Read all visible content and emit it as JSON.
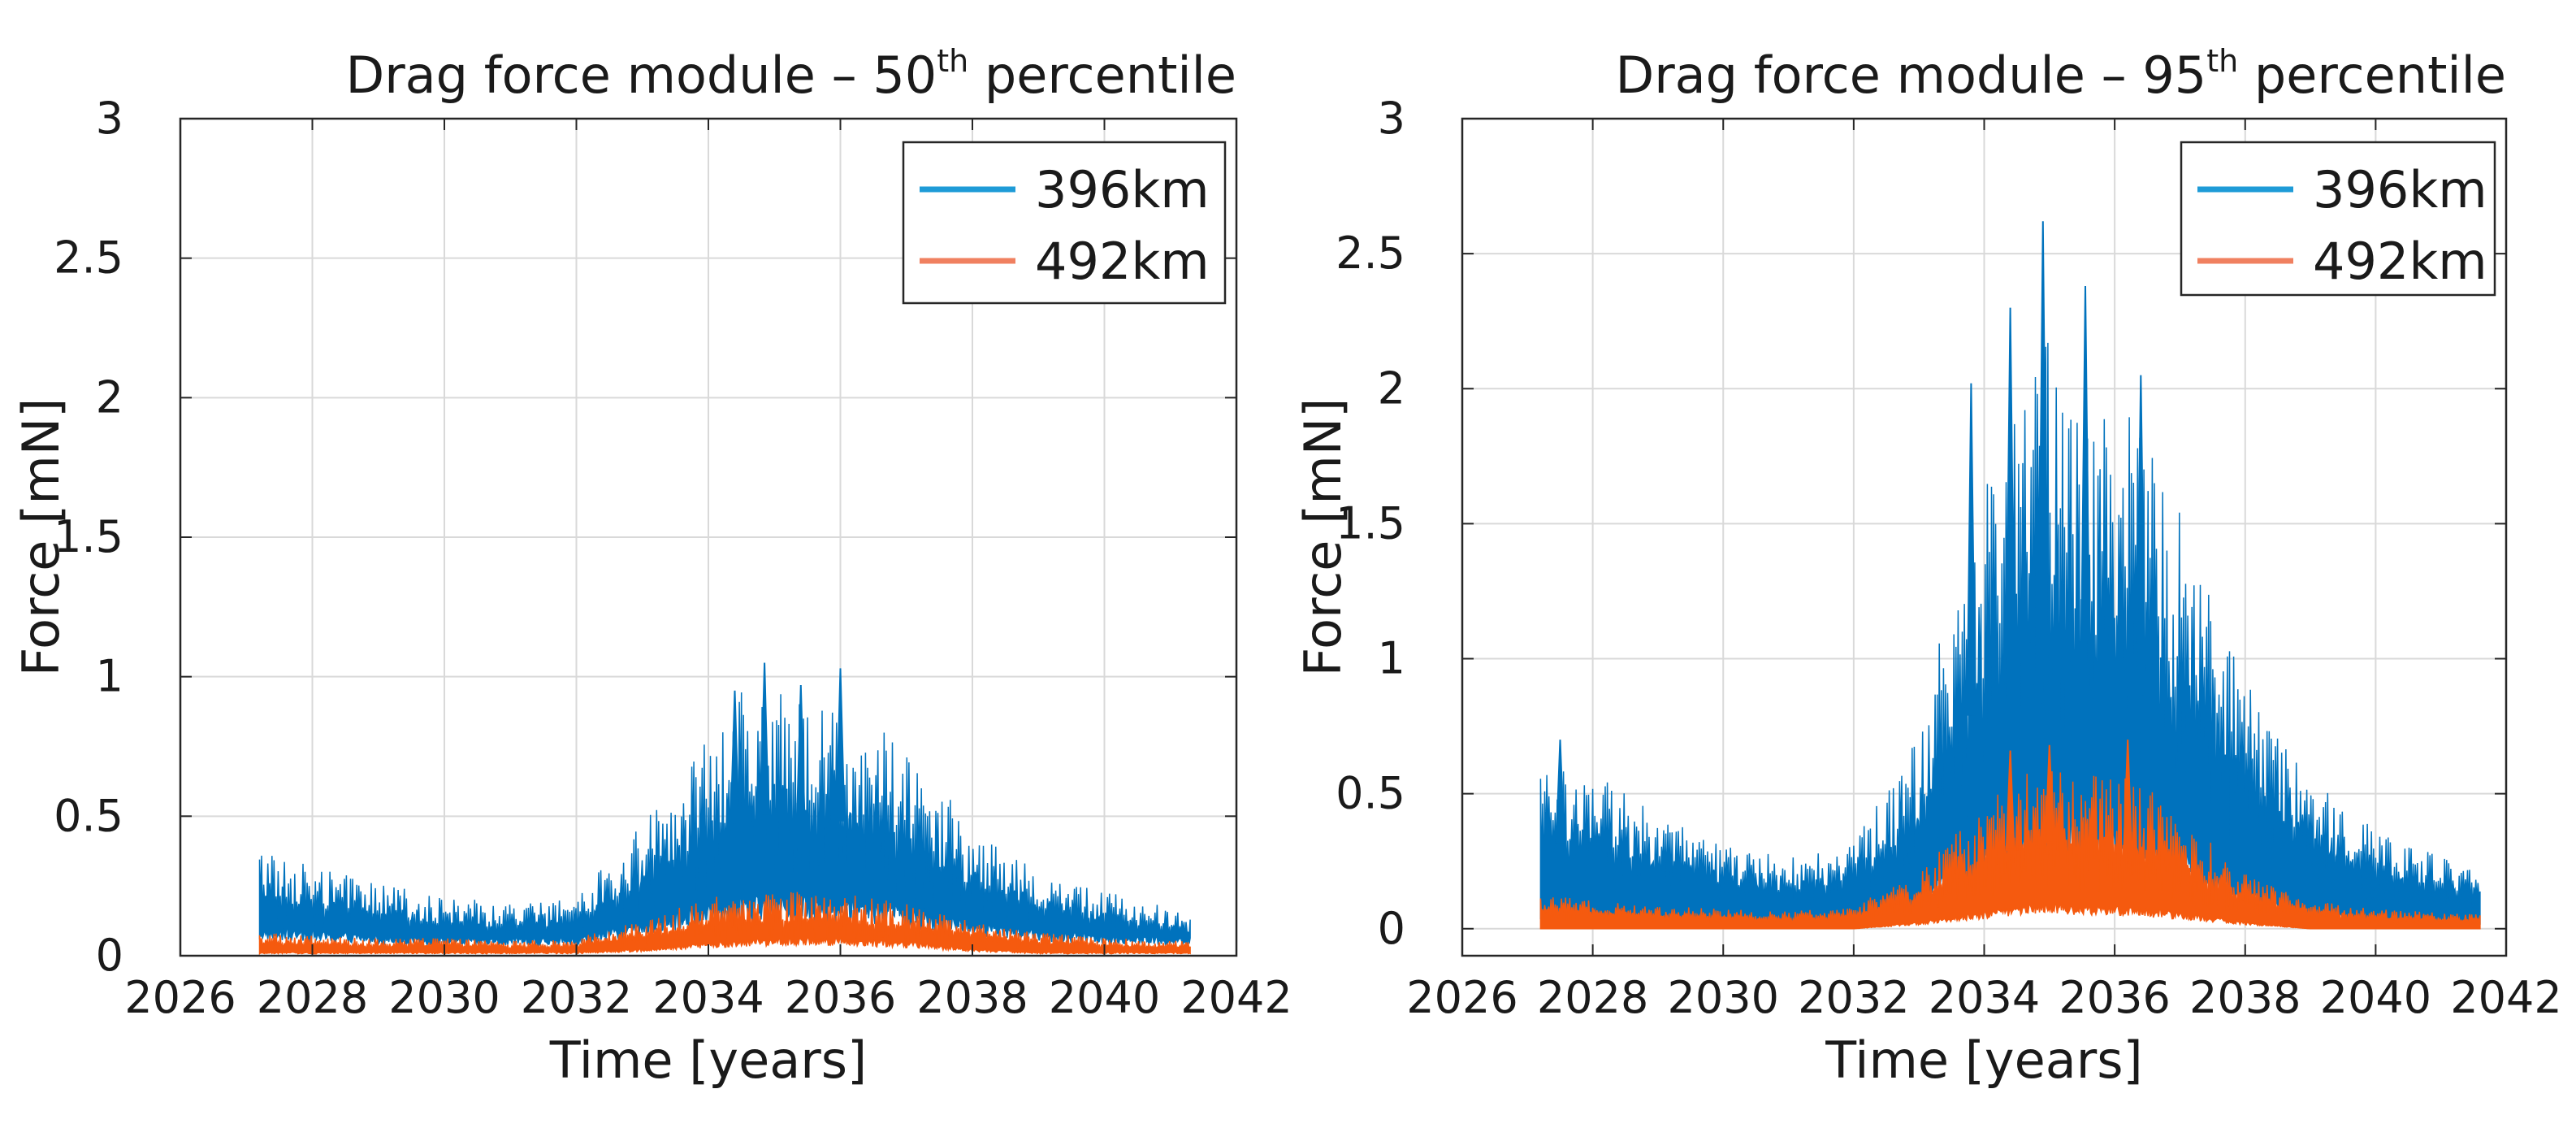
{
  "chart_data": [
    {
      "type": "area",
      "title": "Drag force module – 50",
      "title_sup": "th",
      "title_suffix": " percentile",
      "xlabel": "Time [years]",
      "ylabel": "Force [mN]",
      "xlim": [
        2026,
        2042
      ],
      "ylim": [
        0,
        3
      ],
      "xticks": [
        2026,
        2028,
        2030,
        2032,
        2034,
        2036,
        2038,
        2040,
        2042
      ],
      "yticks": [
        0,
        0.5,
        1,
        1.5,
        2,
        2.5,
        3
      ],
      "ytick_labels": [
        "0",
        "0.5",
        "1",
        "1.5",
        "2",
        "2.5",
        "3"
      ],
      "grid": true,
      "legend_position": "top-right",
      "series": [
        {
          "name": "396km",
          "color": "#0072BD",
          "legend_color": "#1E9BD7",
          "x": [
            2027.2,
            2028.0,
            2029.0,
            2030.0,
            2031.0,
            2032.0,
            2033.0,
            2034.0,
            2034.5,
            2035.0,
            2035.5,
            2036.0,
            2036.5,
            2037.0,
            2038.0,
            2039.0,
            2040.0,
            2041.3
          ],
          "upper": [
            0.38,
            0.3,
            0.25,
            0.2,
            0.18,
            0.2,
            0.45,
            0.75,
            0.9,
            0.92,
            0.85,
            0.88,
            0.8,
            0.7,
            0.45,
            0.3,
            0.22,
            0.15
          ],
          "lower": [
            0.08,
            0.07,
            0.06,
            0.05,
            0.05,
            0.05,
            0.1,
            0.15,
            0.18,
            0.18,
            0.17,
            0.17,
            0.16,
            0.14,
            0.1,
            0.07,
            0.06,
            0.05
          ],
          "peaks": [
            {
              "x": 2034.85,
              "y": 1.05
            },
            {
              "x": 2036.0,
              "y": 1.03
            },
            {
              "x": 2034.4,
              "y": 0.95
            },
            {
              "x": 2035.4,
              "y": 0.97
            }
          ]
        },
        {
          "name": "492km",
          "color": "#F55A0F",
          "legend_color": "#F08060",
          "x": [
            2027.2,
            2028.0,
            2029.0,
            2030.0,
            2031.0,
            2032.0,
            2033.0,
            2034.0,
            2035.0,
            2036.0,
            2037.0,
            2038.0,
            2039.0,
            2040.0,
            2041.3
          ],
          "upper": [
            0.08,
            0.07,
            0.06,
            0.06,
            0.05,
            0.06,
            0.12,
            0.2,
            0.22,
            0.22,
            0.18,
            0.12,
            0.08,
            0.06,
            0.05
          ],
          "lower": [
            0.01,
            0.01,
            0.01,
            0.01,
            0.01,
            0.01,
            0.02,
            0.04,
            0.05,
            0.05,
            0.04,
            0.02,
            0.01,
            0.01,
            0.01
          ],
          "peaks": []
        }
      ]
    },
    {
      "type": "area",
      "title": "Drag force module – 95",
      "title_sup": "th",
      "title_suffix": " percentile",
      "xlabel": "Time [years]",
      "ylabel": "Force [mN]",
      "xlim": [
        2026,
        2042
      ],
      "ylim": [
        -0.1,
        3
      ],
      "xticks": [
        2026,
        2028,
        2030,
        2032,
        2034,
        2036,
        2038,
        2040,
        2042
      ],
      "yticks": [
        0,
        0.5,
        1,
        1.5,
        2,
        2.5,
        3
      ],
      "ytick_labels": [
        "0",
        "0.5",
        "1",
        "1.5",
        "2",
        "2.5",
        "3"
      ],
      "grid": true,
      "legend_position": "top-right",
      "series": [
        {
          "name": "396km",
          "color": "#0072BD",
          "legend_color": "#1E9BD7",
          "x": [
            2027.2,
            2028.0,
            2029.0,
            2030.0,
            2031.0,
            2032.0,
            2033.0,
            2033.5,
            2034.0,
            2034.5,
            2035.0,
            2035.5,
            2036.0,
            2036.5,
            2037.0,
            2038.0,
            2039.0,
            2040.0,
            2041.6
          ],
          "upper": [
            0.6,
            0.55,
            0.4,
            0.3,
            0.25,
            0.3,
            0.7,
            1.2,
            1.6,
            1.9,
            2.1,
            1.95,
            1.9,
            1.7,
            1.5,
            0.9,
            0.55,
            0.35,
            0.2
          ],
          "lower": [
            0.05,
            0.04,
            0.03,
            0.02,
            0.02,
            0.03,
            0.1,
            0.18,
            0.25,
            0.3,
            0.32,
            0.3,
            0.3,
            0.27,
            0.22,
            0.12,
            0.06,
            0.03,
            0.02
          ],
          "peaks": [
            {
              "x": 2034.9,
              "y": 2.62
            },
            {
              "x": 2034.4,
              "y": 2.3
            },
            {
              "x": 2035.55,
              "y": 2.38
            },
            {
              "x": 2036.4,
              "y": 2.05
            },
            {
              "x": 2033.8,
              "y": 2.02
            },
            {
              "x": 2027.5,
              "y": 0.7
            }
          ]
        },
        {
          "name": "492km",
          "color": "#F55A0F",
          "legend_color": "#F08060",
          "x": [
            2027.2,
            2028.0,
            2029.0,
            2030.0,
            2031.0,
            2032.0,
            2033.0,
            2034.0,
            2034.5,
            2035.0,
            2035.5,
            2036.0,
            2036.5,
            2037.0,
            2038.0,
            2039.0,
            2040.0,
            2041.6
          ],
          "upper": [
            0.12,
            0.1,
            0.08,
            0.07,
            0.06,
            0.08,
            0.2,
            0.45,
            0.55,
            0.58,
            0.55,
            0.55,
            0.5,
            0.4,
            0.2,
            0.1,
            0.07,
            0.05
          ],
          "lower": [
            0.0,
            0.0,
            0.0,
            0.0,
            0.0,
            0.0,
            0.02,
            0.05,
            0.07,
            0.08,
            0.07,
            0.07,
            0.06,
            0.05,
            0.02,
            0.0,
            0.0,
            0.0
          ],
          "peaks": [
            {
              "x": 2035.0,
              "y": 0.68
            },
            {
              "x": 2036.2,
              "y": 0.7
            },
            {
              "x": 2034.4,
              "y": 0.66
            }
          ]
        }
      ]
    }
  ]
}
